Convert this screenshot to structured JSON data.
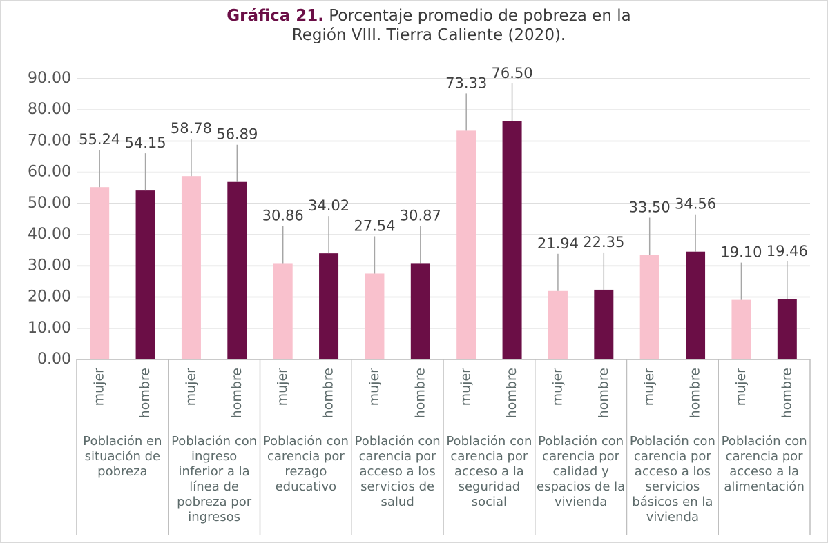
{
  "chart_data": {
    "type": "bar",
    "title_label": "Gráfica 21.",
    "title": "Porcentaje promedio de pobreza en la Región VIII. Tierra Caliente (2020).",
    "groups": [
      "Población en situación de pobreza",
      "Población con ingreso inferior a la línea de pobreza por ingresos",
      "Población con carencia por rezago educativo",
      "Población con carencia por acceso a los servicios de salud",
      "Población con carencia por acceso a la seguridad social",
      "Población con carencia por calidad y espacios de la vivienda",
      "Población con carencia por acceso a los servicios básicos en la vivienda",
      "Población con carencia por acceso a la alimentación"
    ],
    "categories": [
      "mujer",
      "hombre",
      "mujer",
      "hombre",
      "mujer",
      "hombre",
      "mujer",
      "hombre",
      "mujer",
      "hombre",
      "mujer",
      "hombre",
      "mujer",
      "hombre",
      "mujer",
      "hombre"
    ],
    "values": [
      55.24,
      54.15,
      58.78,
      56.89,
      30.86,
      34.02,
      27.54,
      30.87,
      73.33,
      76.5,
      21.94,
      22.35,
      33.5,
      34.56,
      19.1,
      19.46
    ],
    "value_labels": [
      "55.24",
      "54.15",
      "58.78",
      "56.89",
      "30.86",
      "34.02",
      "27.54",
      "30.87",
      "73.33",
      "76.50",
      "21.94",
      "22.35",
      "33.50",
      "34.56",
      "19.10",
      "19.46"
    ],
    "colors": [
      "#f9c1cd",
      "#6b0e46",
      "#f9c1cd",
      "#6b0e46",
      "#f9c1cd",
      "#6b0e46",
      "#f9c1cd",
      "#6b0e46",
      "#f9c1cd",
      "#6b0e46",
      "#f9c1cd",
      "#6b0e46",
      "#f9c1cd",
      "#6b0e46",
      "#f9c1cd",
      "#6b0e46"
    ],
    "ylim": [
      0,
      90
    ],
    "yticks": [
      {
        "value": 0,
        "label": "0.00"
      },
      {
        "value": 10,
        "label": "10.00"
      },
      {
        "value": 20,
        "label": "20.00"
      },
      {
        "value": 30,
        "label": "30.00"
      },
      {
        "value": 40,
        "label": "40.00"
      },
      {
        "value": 50,
        "label": "50.00"
      },
      {
        "value": 60,
        "label": "60.00"
      },
      {
        "value": 70,
        "label": "70.00"
      },
      {
        "value": 80,
        "label": "80.00"
      },
      {
        "value": 90,
        "label": "90.00"
      }
    ],
    "grid": true
  }
}
